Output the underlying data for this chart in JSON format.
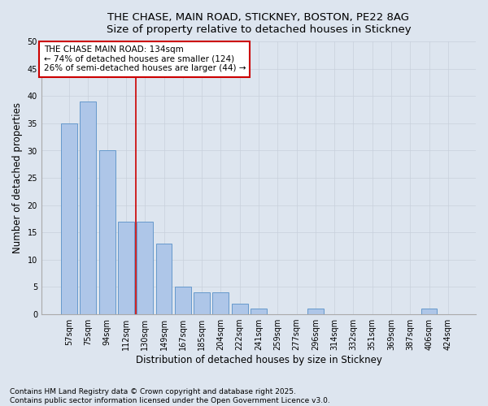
{
  "title_line1": "THE CHASE, MAIN ROAD, STICKNEY, BOSTON, PE22 8AG",
  "title_line2": "Size of property relative to detached houses in Stickney",
  "xlabel": "Distribution of detached houses by size in Stickney",
  "ylabel": "Number of detached properties",
  "categories": [
    "57sqm",
    "75sqm",
    "94sqm",
    "112sqm",
    "130sqm",
    "149sqm",
    "167sqm",
    "185sqm",
    "204sqm",
    "222sqm",
    "241sqm",
    "259sqm",
    "277sqm",
    "296sqm",
    "314sqm",
    "332sqm",
    "351sqm",
    "369sqm",
    "387sqm",
    "406sqm",
    "424sqm"
  ],
  "values": [
    35,
    39,
    30,
    17,
    17,
    13,
    5,
    4,
    4,
    2,
    1,
    0,
    0,
    1,
    0,
    0,
    0,
    0,
    0,
    1,
    0
  ],
  "bar_color": "#aec6e8",
  "bar_edge_color": "#6699cc",
  "annotation_text_line1": "THE CHASE MAIN ROAD: 134sqm",
  "annotation_text_line2": "← 74% of detached houses are smaller (124)",
  "annotation_text_line3": "26% of semi-detached houses are larger (44) →",
  "annotation_box_facecolor": "#ffffff",
  "annotation_box_edgecolor": "#cc0000",
  "vline_color": "#cc0000",
  "vline_x": 3.5,
  "ylim": [
    0,
    50
  ],
  "yticks": [
    0,
    5,
    10,
    15,
    20,
    25,
    30,
    35,
    40,
    45,
    50
  ],
  "grid_color": "#c8d0dc",
  "bg_color": "#dde5ef",
  "footer_line1": "Contains HM Land Registry data © Crown copyright and database right 2025.",
  "footer_line2": "Contains public sector information licensed under the Open Government Licence v3.0.",
  "title_fontsize": 9.5,
  "axis_label_fontsize": 8.5,
  "tick_fontsize": 7,
  "annotation_fontsize": 7.5,
  "footer_fontsize": 6.5
}
